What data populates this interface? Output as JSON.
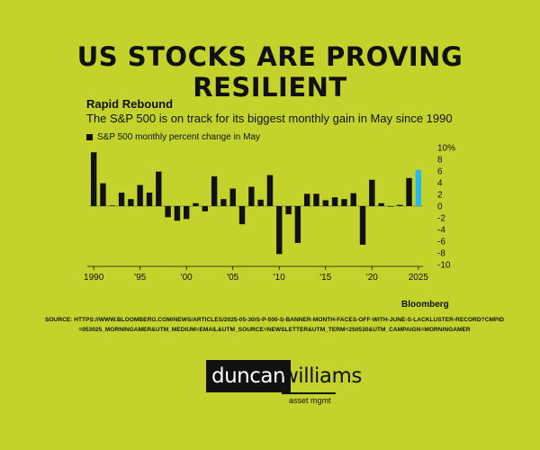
{
  "headline": "US STOCKS ARE PROVING RESILIENT",
  "credit": "Bloomberg",
  "source": "SOURCE: HTTPS://WWW.BLOOMBERG.COM/NEWS/ARTICLES/2025-05-30/S-P-500-S-BANNER-MONTH-FACES-OFF-WITH-JUNE-S-LACKLUSTER-RECORD?CMPID=053025_MORNINGAMER&UTM_MEDIUM=EMAIL&UTM_SOURCE=NEWSLETTER&UTM_TERM=250530&UTM_CAMPAIGN=MORNINGAMER",
  "logo": {
    "main": "duncan",
    "second": "williams",
    "sub": "asset mgmt"
  },
  "colors": {
    "background": "#c3d32b",
    "bar": "#111111",
    "highlight": "#2cb6ea"
  },
  "chart_data": {
    "type": "bar",
    "title": "Rapid Rebound",
    "subtitle": "The S&P 500 is on track for its biggest monthly gain in May since 1990",
    "legend": [
      "S&P 500 monthly percent change in May"
    ],
    "x": [
      1990,
      1991,
      1992,
      1993,
      1994,
      1995,
      1996,
      1997,
      1998,
      1999,
      2000,
      2001,
      2002,
      2003,
      2004,
      2005,
      2006,
      2007,
      2008,
      2009,
      2010,
      2011,
      2012,
      2013,
      2014,
      2015,
      2016,
      2017,
      2018,
      2019,
      2020,
      2021,
      2022,
      2023,
      2024,
      2025
    ],
    "values": [
      9.2,
      3.9,
      0.1,
      2.3,
      1.2,
      3.6,
      2.3,
      5.9,
      -1.9,
      -2.5,
      -2.2,
      0.5,
      -0.9,
      5.1,
      1.2,
      3.0,
      -3.1,
      3.3,
      1.1,
      5.3,
      -8.2,
      -1.4,
      -6.3,
      2.1,
      2.1,
      1.0,
      1.5,
      1.2,
      2.2,
      -6.6,
      4.5,
      0.5,
      0.0,
      0.2,
      4.8,
      6.2
    ],
    "highlight_index": 35,
    "x_tick_labels": [
      "1990",
      "'95",
      "'00",
      "'05",
      "'10",
      "'15",
      "'20",
      "2025"
    ],
    "x_tick_values": [
      1990,
      1995,
      2000,
      2005,
      2010,
      2015,
      2020,
      2025
    ],
    "y_tick_labels": [
      "10%",
      "8",
      "6",
      "4",
      "2",
      "0",
      "-2",
      "-4",
      "-6",
      "-8",
      "-10"
    ],
    "y_tick_values": [
      10,
      8,
      6,
      4,
      2,
      0,
      -2,
      -4,
      -6,
      -8,
      -10
    ],
    "ylim": [
      -10,
      10
    ],
    "grid": false,
    "legend_position": "top-left"
  }
}
